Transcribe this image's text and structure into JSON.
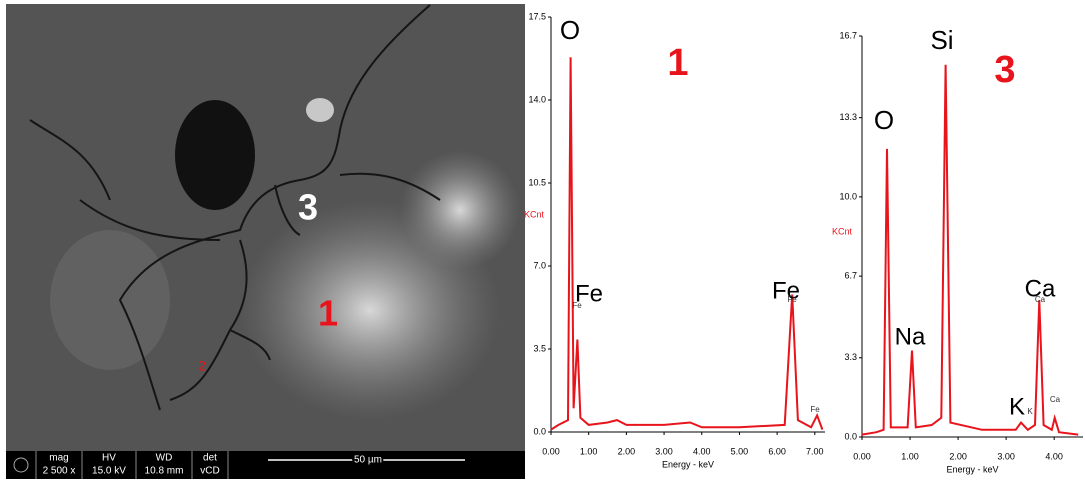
{
  "sem_image": {
    "labels": [
      "3",
      "1",
      "2"
    ],
    "info_bar": {
      "headers": [
        "mag",
        "HV",
        "WD",
        "det"
      ],
      "values": [
        "2 500 x",
        "15.0 kV",
        "10.8 mm",
        "vCD"
      ],
      "scale": "50 µm"
    }
  },
  "chart_data": [
    {
      "type": "line",
      "title": "1",
      "x_label": "Energy - keV",
      "y_label": "KCnt",
      "xlim": [
        0,
        7.27
      ],
      "ylim": [
        0,
        17.5
      ],
      "xticks": [
        {
          "value": 0,
          "label": "0.00"
        },
        {
          "value": 1,
          "label": "1.00"
        },
        {
          "value": 2,
          "label": "2.00"
        },
        {
          "value": 3,
          "label": "3.00"
        },
        {
          "value": 4,
          "label": "4.00"
        },
        {
          "value": 5,
          "label": "5.00"
        },
        {
          "value": 6,
          "label": "6.00"
        },
        {
          "value": 7,
          "label": "7.00"
        }
      ],
      "yticks": [
        {
          "value": 0,
          "label": "0.0"
        },
        3.5,
        {
          "value": 7,
          "label": "7.0"
        },
        10.5,
        {
          "value": 14,
          "label": "14.0"
        },
        17.5
      ],
      "annotations": [
        "O",
        "Fe",
        "Fe",
        "Fe",
        "Fe",
        "Fe"
      ],
      "series": [
        {
          "color": "#e8141c",
          "x": [
            0,
            0.2,
            0.45,
            0.52,
            0.6,
            0.7,
            0.78,
            1.0,
            1.5,
            1.75,
            2.0,
            3.0,
            3.69,
            4.0,
            5.0,
            6.2,
            6.4,
            6.55,
            6.9,
            7.06,
            7.2
          ],
          "values": [
            0.1,
            0.3,
            0.5,
            15.8,
            1.0,
            3.9,
            0.6,
            0.3,
            0.4,
            0.5,
            0.3,
            0.3,
            0.4,
            0.2,
            0.2,
            0.3,
            5.8,
            0.5,
            0.2,
            0.7,
            0.1
          ]
        }
      ]
    },
    {
      "type": "line",
      "title": "3",
      "x_label": "Energy - keV",
      "y_label": "KCnt",
      "xlim": [
        0,
        4.6
      ],
      "ylim": [
        0,
        16.7
      ],
      "xticks": [
        {
          "value": 0,
          "label": "0.00"
        },
        {
          "value": 1,
          "label": "1.00"
        },
        {
          "value": 2,
          "label": "2.00"
        },
        {
          "value": 3,
          "label": "3.00"
        },
        {
          "value": 4,
          "label": "4.00"
        }
      ],
      "yticks": [
        {
          "value": 0,
          "label": "0.0"
        },
        3.3,
        6.7,
        {
          "value": 10,
          "label": "10.0"
        },
        13.3,
        16.7
      ],
      "annotations": [
        "O",
        "Na",
        "Si",
        "Ca",
        "Ca",
        "K",
        "K",
        "Ca"
      ],
      "series": [
        {
          "color": "#e8141c",
          "x": [
            0,
            0.3,
            0.45,
            0.52,
            0.6,
            0.95,
            1.04,
            1.12,
            1.45,
            1.65,
            1.74,
            1.84,
            2.5,
            3.2,
            3.31,
            3.45,
            3.6,
            3.69,
            3.78,
            3.95,
            4.01,
            4.1,
            4.5
          ],
          "values": [
            0.1,
            0.2,
            0.3,
            12.0,
            0.4,
            0.4,
            3.6,
            0.4,
            0.5,
            0.8,
            15.5,
            0.6,
            0.3,
            0.3,
            0.6,
            0.3,
            0.5,
            5.7,
            0.5,
            0.3,
            0.8,
            0.2,
            0.1
          ]
        }
      ]
    }
  ]
}
